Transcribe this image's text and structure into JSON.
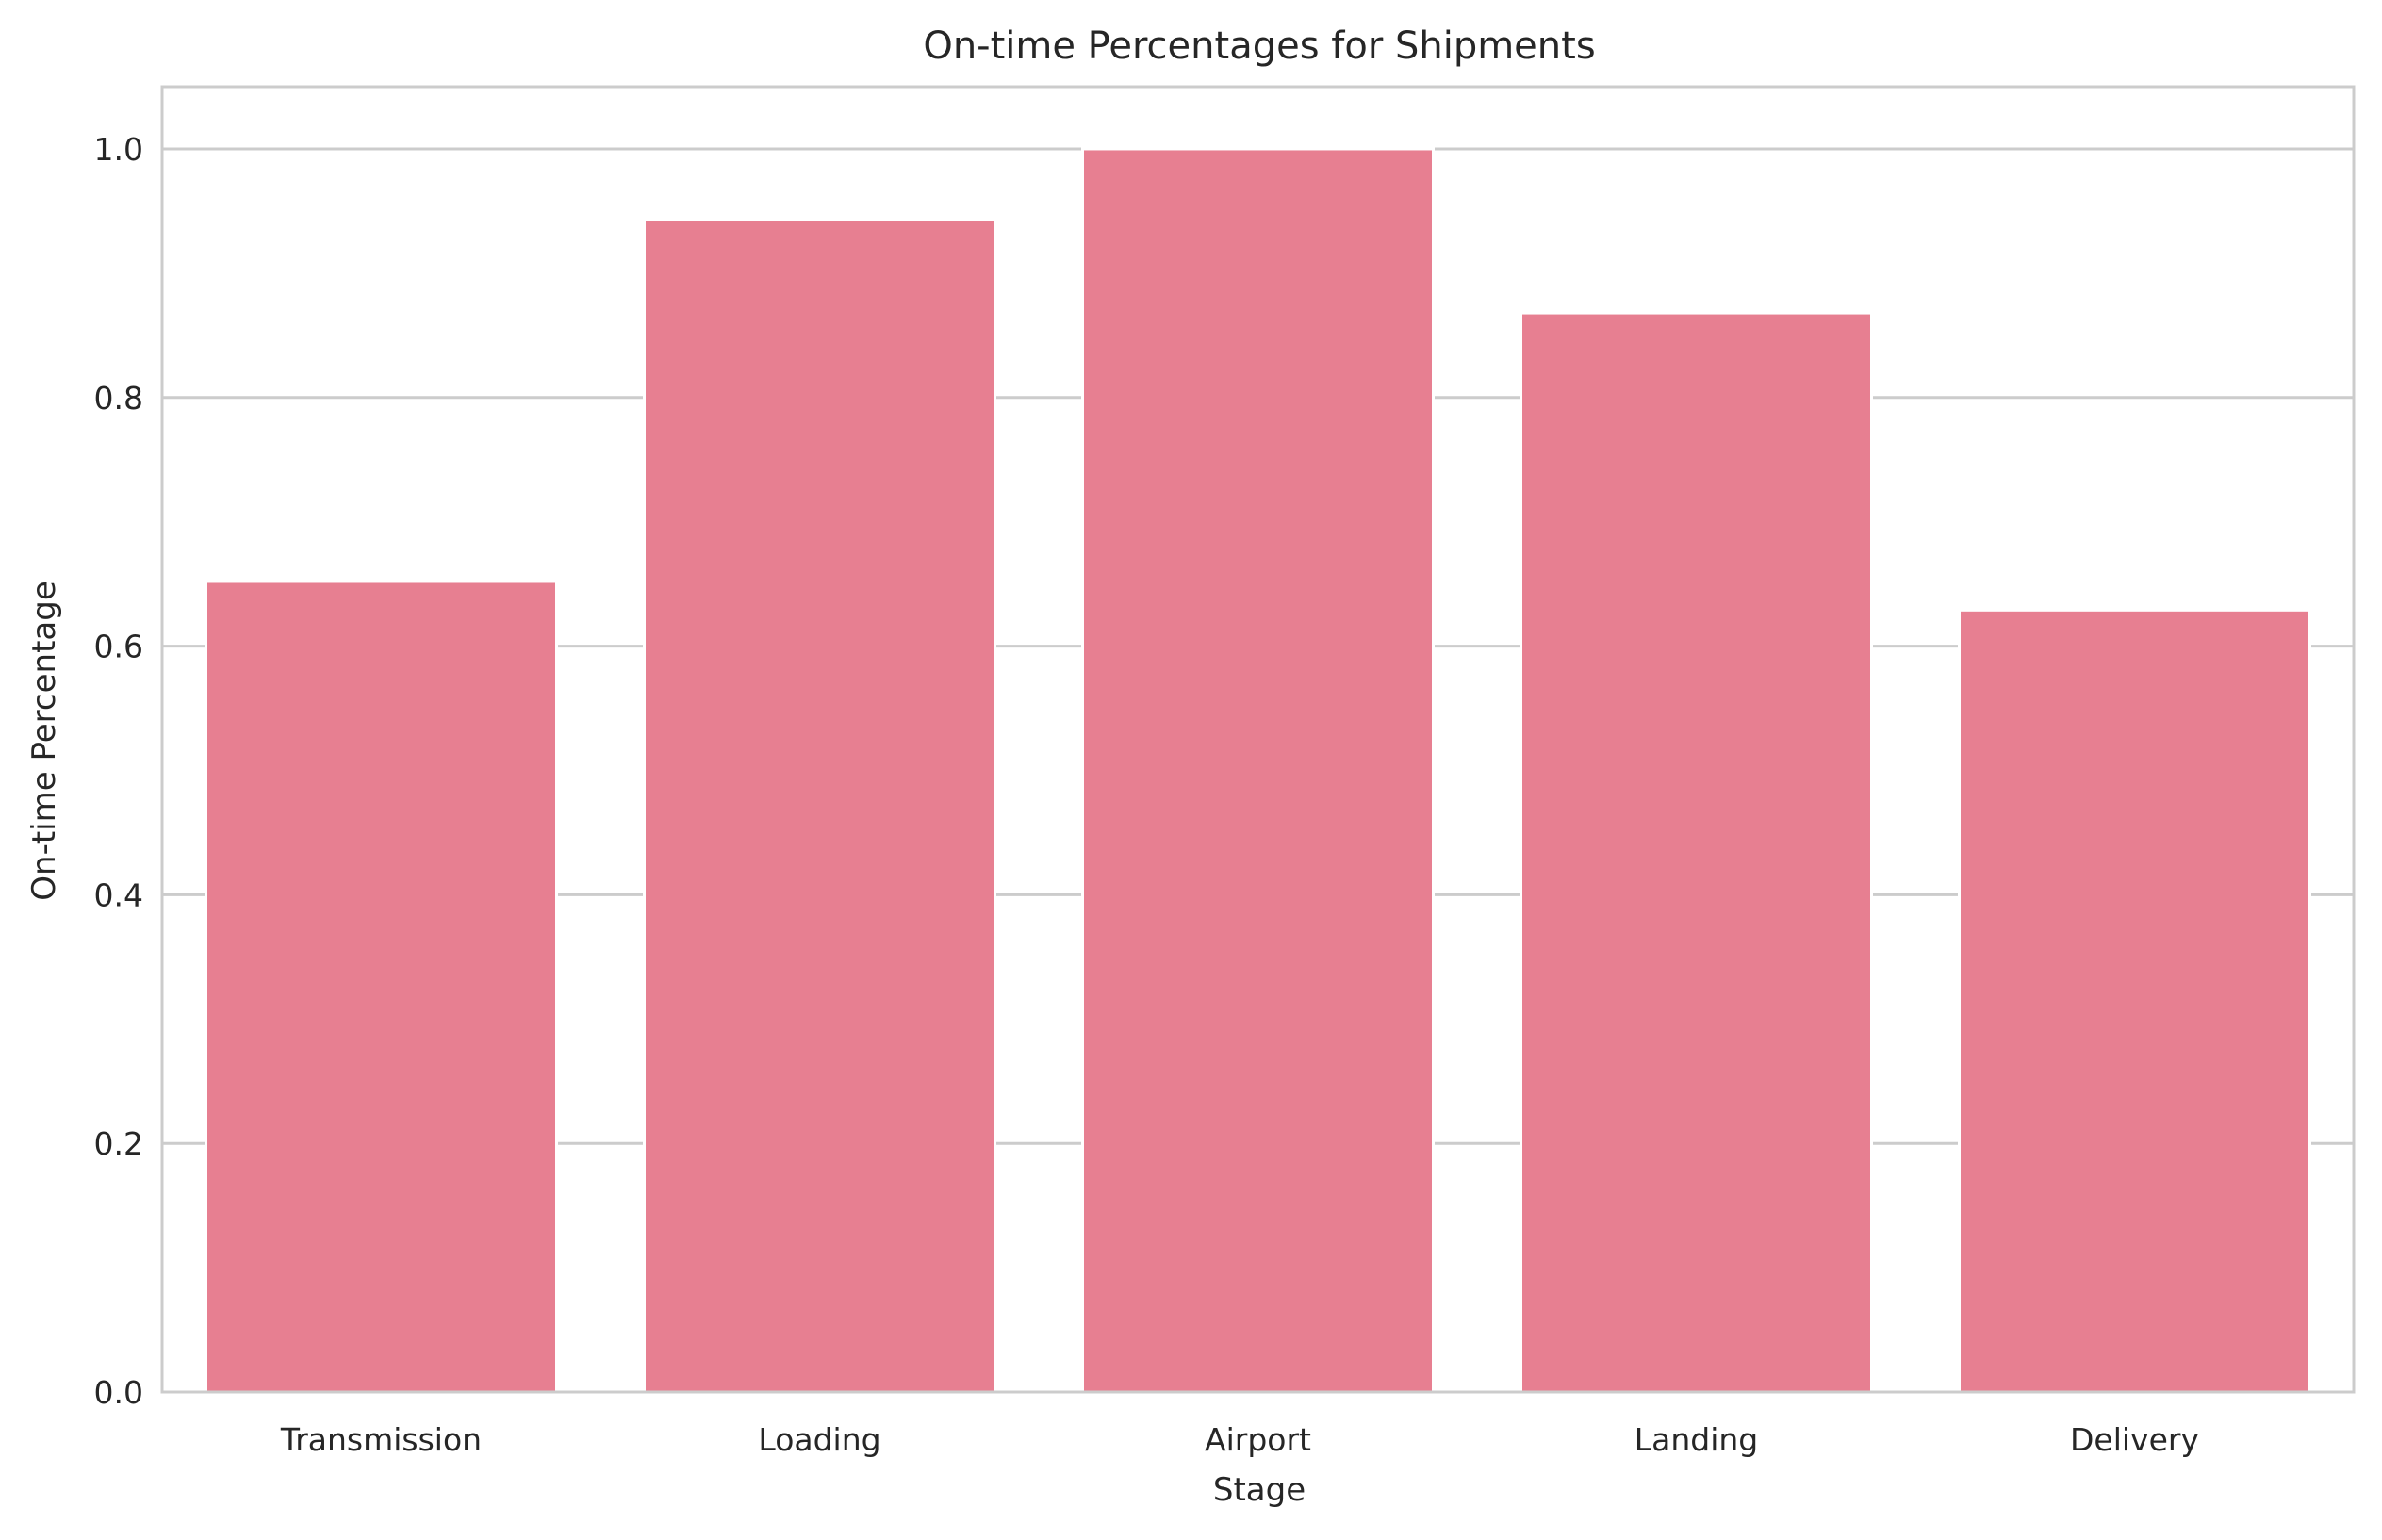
{
  "chart_data": {
    "type": "bar",
    "title": "On-time Percentages for Shipments",
    "xlabel": "Stage",
    "ylabel": "On-time Percentage",
    "categories": [
      "Transmission",
      "Loading",
      "Airport",
      "Landing",
      "Delivery"
    ],
    "values": [
      0.652,
      0.943,
      1.0,
      0.868,
      0.629
    ],
    "ylim": [
      0,
      1.05
    ],
    "yticks": [
      0.0,
      0.2,
      0.4,
      0.6,
      0.8,
      1.0
    ],
    "ytick_labels": [
      "0.0",
      "0.2",
      "0.4",
      "0.6",
      "0.8",
      "1.0"
    ],
    "grid": "horizontal",
    "colors": {
      "bar": "#e77f91",
      "grid": "#cccccc",
      "frame": "#cccccc",
      "text": "#262626",
      "background": "#ffffff"
    }
  }
}
